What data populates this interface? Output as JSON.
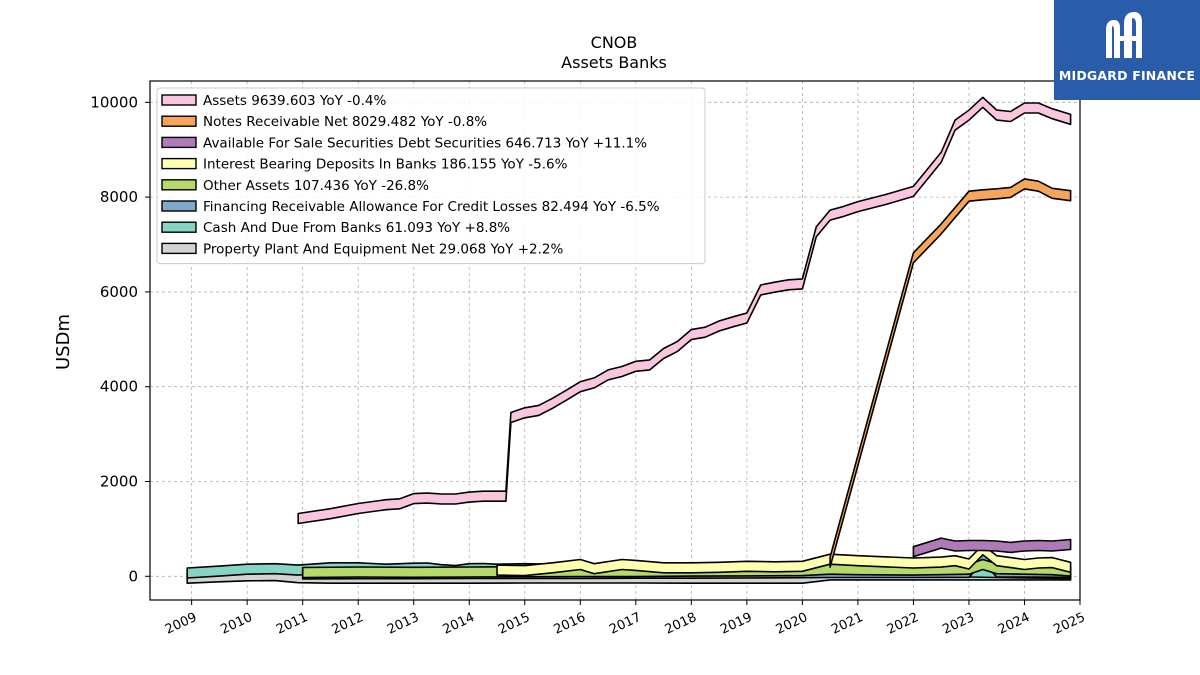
{
  "logo": {
    "text": "MIDGARD FINANCE"
  },
  "chart_data": {
    "type": "area",
    "title": "CNOB",
    "subtitle": "Assets Banks",
    "ylabel": "USDm",
    "xlabel": "",
    "xlim": [
      2008.25,
      2025.0
    ],
    "ylim": [
      -500,
      10450
    ],
    "yticks": [
      0,
      2000,
      4000,
      6000,
      8000,
      10000
    ],
    "xticks": [
      "2009",
      "2010",
      "2011",
      "2012",
      "2013",
      "2014",
      "2015",
      "2016",
      "2017",
      "2018",
      "2019",
      "2020",
      "2021",
      "2022",
      "2023",
      "2024",
      "2025"
    ],
    "grid": true,
    "legend_position": "top-left",
    "series": [
      {
        "name": "Assets",
        "legend": "Assets  9639.603 YoY -0.4%",
        "color": "#f9c6dd",
        "points": [
          [
            2010.92,
            1220
          ],
          [
            2011.5,
            1320
          ],
          [
            2012.0,
            1430
          ],
          [
            2012.5,
            1510
          ],
          [
            2012.75,
            1530
          ],
          [
            2013.0,
            1640
          ],
          [
            2013.25,
            1650
          ],
          [
            2013.5,
            1630
          ],
          [
            2013.75,
            1630
          ],
          [
            2014.0,
            1670
          ],
          [
            2014.25,
            1690
          ],
          [
            2014.5,
            1690
          ],
          [
            2014.66,
            1690
          ],
          [
            2014.75,
            3350
          ],
          [
            2015.0,
            3450
          ],
          [
            2015.25,
            3500
          ],
          [
            2015.5,
            3650
          ],
          [
            2015.75,
            3820
          ],
          [
            2016.0,
            4000
          ],
          [
            2016.25,
            4080
          ],
          [
            2016.5,
            4250
          ],
          [
            2016.75,
            4320
          ],
          [
            2017.0,
            4430
          ],
          [
            2017.25,
            4460
          ],
          [
            2017.5,
            4700
          ],
          [
            2017.75,
            4850
          ],
          [
            2018.0,
            5100
          ],
          [
            2018.25,
            5150
          ],
          [
            2018.5,
            5280
          ],
          [
            2018.75,
            5370
          ],
          [
            2019.0,
            5450
          ],
          [
            2019.25,
            6040
          ],
          [
            2019.5,
            6100
          ],
          [
            2019.75,
            6150
          ],
          [
            2020.0,
            6170
          ],
          [
            2020.25,
            7270
          ],
          [
            2020.5,
            7620
          ],
          [
            2020.75,
            7700
          ],
          [
            2021.0,
            7800
          ],
          [
            2021.5,
            7950
          ],
          [
            2022.0,
            8120
          ],
          [
            2022.5,
            8840
          ],
          [
            2022.75,
            9520
          ],
          [
            2023.0,
            9730
          ],
          [
            2023.25,
            10000
          ],
          [
            2023.5,
            9730
          ],
          [
            2023.75,
            9700
          ],
          [
            2024.0,
            9880
          ],
          [
            2024.25,
            9880
          ],
          [
            2024.5,
            9760
          ],
          [
            2024.83,
            9640
          ]
        ]
      },
      {
        "name": "Notes Receivable Net",
        "legend": "Notes Receivable Net  8029.482 YoY -0.8%",
        "color": "#f7a55a",
        "points": [
          [
            2020.5,
            300
          ],
          [
            2022.0,
            6720
          ],
          [
            2022.5,
            7330
          ],
          [
            2023.0,
            8020
          ],
          [
            2023.25,
            8050
          ],
          [
            2023.5,
            8070
          ],
          [
            2023.75,
            8100
          ],
          [
            2024.0,
            8280
          ],
          [
            2024.25,
            8230
          ],
          [
            2024.5,
            8080
          ],
          [
            2024.83,
            8030
          ]
        ]
      },
      {
        "name": "Available For Sale Securities Debt Securities",
        "legend": "Available For Sale Securities Debt Securities  646.713 YoY +11.1%",
        "color": "#b07ab8",
        "points": [
          [
            2022.0,
            520
          ],
          [
            2022.5,
            700
          ],
          [
            2022.75,
            640
          ],
          [
            2023.0,
            650
          ],
          [
            2023.25,
            650
          ],
          [
            2023.5,
            640
          ],
          [
            2023.75,
            610
          ],
          [
            2024.0,
            640
          ],
          [
            2024.25,
            650
          ],
          [
            2024.5,
            640
          ],
          [
            2024.83,
            670
          ]
        ]
      },
      {
        "name": "Interest Bearing Deposits In Banks",
        "legend": "Interest Bearing Deposits In Banks  186.155 YoY -5.6%",
        "color": "#ffffb0",
        "points": [
          [
            2014.5,
            130
          ],
          [
            2015.0,
            120
          ],
          [
            2015.5,
            180
          ],
          [
            2016.0,
            250
          ],
          [
            2016.25,
            160
          ],
          [
            2016.75,
            250
          ],
          [
            2017.0,
            230
          ],
          [
            2017.5,
            180
          ],
          [
            2018.0,
            180
          ],
          [
            2018.5,
            190
          ],
          [
            2019.0,
            210
          ],
          [
            2019.5,
            200
          ],
          [
            2020.0,
            210
          ],
          [
            2020.5,
            360
          ],
          [
            2021.0,
            330
          ],
          [
            2022.0,
            280
          ],
          [
            2022.5,
            300
          ],
          [
            2022.75,
            330
          ],
          [
            2023.0,
            260
          ],
          [
            2023.25,
            560
          ],
          [
            2023.5,
            330
          ],
          [
            2023.75,
            290
          ],
          [
            2024.0,
            250
          ],
          [
            2024.25,
            280
          ],
          [
            2024.5,
            290
          ],
          [
            2024.83,
            190
          ]
        ]
      },
      {
        "name": "Other Assets",
        "legend": "Other Assets  107.436 YoY -26.8%",
        "color": "#b5d96a",
        "points": [
          [
            2011.0,
            80
          ],
          [
            2012.0,
            90
          ],
          [
            2013.0,
            85
          ],
          [
            2014.0,
            90
          ],
          [
            2015.0,
            95
          ],
          [
            2016.0,
            100
          ],
          [
            2017.0,
            100
          ],
          [
            2018.0,
            110
          ],
          [
            2019.0,
            115
          ],
          [
            2020.0,
            120
          ],
          [
            2020.5,
            150
          ],
          [
            2021.0,
            140
          ],
          [
            2022.0,
            130
          ],
          [
            2023.0,
            150
          ],
          [
            2023.25,
            250
          ],
          [
            2023.5,
            160
          ],
          [
            2024.0,
            150
          ],
          [
            2024.5,
            140
          ],
          [
            2024.83,
            110
          ]
        ]
      },
      {
        "name": "Financing Receivable Allowance For Credit Losses",
        "legend": "Financing Receivable Allowance For Credit Losses  82.494 YoY -6.5%",
        "color": "#7fa8c9",
        "points": [
          [
            2011.0,
            50
          ],
          [
            2012.0,
            55
          ],
          [
            2013.0,
            55
          ],
          [
            2014.0,
            60
          ],
          [
            2015.0,
            60
          ],
          [
            2016.0,
            60
          ],
          [
            2017.0,
            65
          ],
          [
            2018.0,
            65
          ],
          [
            2019.0,
            70
          ],
          [
            2020.0,
            75
          ],
          [
            2020.5,
            80
          ],
          [
            2021.0,
            80
          ],
          [
            2022.0,
            80
          ],
          [
            2023.0,
            85
          ],
          [
            2023.25,
            400
          ],
          [
            2023.5,
            90
          ],
          [
            2024.0,
            88
          ],
          [
            2024.5,
            86
          ],
          [
            2024.83,
            82
          ]
        ]
      },
      {
        "name": "Cash And Due From Banks",
        "legend": "Cash And Due From Banks  61.093 YoY +8.8%",
        "color": "#86d4c2",
        "points": [
          [
            2008.92,
            70
          ],
          [
            2009.5,
            110
          ],
          [
            2010.0,
            150
          ],
          [
            2010.5,
            160
          ],
          [
            2010.92,
            130
          ],
          [
            2011.5,
            180
          ],
          [
            2012.0,
            180
          ],
          [
            2012.5,
            150
          ],
          [
            2013.0,
            170
          ],
          [
            2013.25,
            175
          ],
          [
            2013.5,
            140
          ],
          [
            2013.75,
            120
          ],
          [
            2014.0,
            160
          ],
          [
            2014.25,
            165
          ],
          [
            2014.5,
            150
          ],
          [
            2015.0,
            160
          ],
          [
            2015.5,
            150
          ],
          [
            2016.0,
            150
          ],
          [
            2017.0,
            150
          ],
          [
            2018.0,
            140
          ],
          [
            2019.0,
            140
          ],
          [
            2020.0,
            140
          ],
          [
            2020.5,
            150
          ],
          [
            2021.0,
            140
          ],
          [
            2022.0,
            100
          ],
          [
            2023.0,
            90
          ],
          [
            2024.0,
            70
          ],
          [
            2024.83,
            61
          ]
        ]
      },
      {
        "name": "Property Plant And Equipment Net",
        "legend": "Property Plant And Equipment Net  29.068 YoY +2.2%",
        "color": "#d3d3d3",
        "points": [
          [
            2008.92,
            -40
          ],
          [
            2009.5,
            -10
          ],
          [
            2010.0,
            10
          ],
          [
            2010.5,
            15
          ],
          [
            2010.92,
            -30
          ],
          [
            2011.5,
            -40
          ],
          [
            2012.0,
            -40
          ],
          [
            2013.0,
            -40
          ],
          [
            2014.0,
            -40
          ],
          [
            2015.0,
            -35
          ],
          [
            2016.0,
            -35
          ],
          [
            2017.0,
            -35
          ],
          [
            2018.0,
            -40
          ],
          [
            2019.0,
            -40
          ],
          [
            2020.0,
            -40
          ],
          [
            2020.5,
            30
          ],
          [
            2021.0,
            30
          ],
          [
            2022.0,
            30
          ],
          [
            2023.0,
            30
          ],
          [
            2024.0,
            30
          ],
          [
            2024.83,
            29
          ]
        ]
      }
    ]
  }
}
